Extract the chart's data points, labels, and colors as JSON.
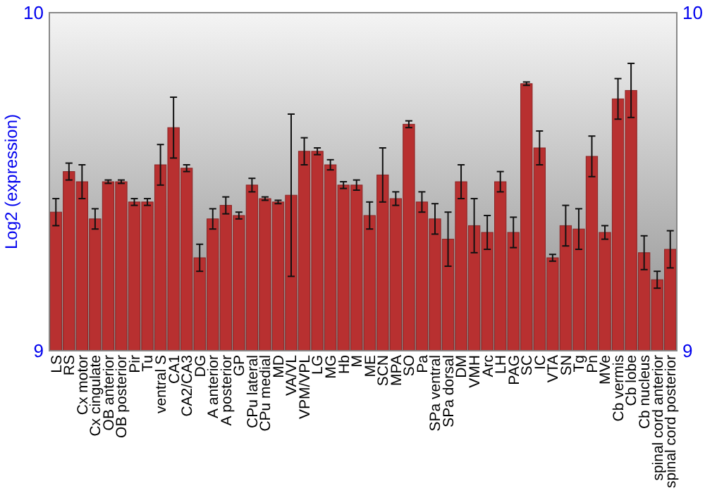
{
  "chart_data": {
    "type": "bar",
    "ylabel": "Log2 (expression)",
    "categories": [
      "LS",
      "RS",
      "Cx motor",
      "Cx cingulate",
      "OB anterior",
      "OB posterior",
      "Pir",
      "Tu",
      "ventral S",
      "CA1",
      "CA2/CA3",
      "DG",
      "A anterior",
      "A posterior",
      "GP",
      "CPu lateral",
      "CPu medial",
      "MD",
      "VA/VL",
      "VPM/VPL",
      "LG",
      "MG",
      "Hb",
      "M",
      "ME",
      "SCN",
      "MPA",
      "SO",
      "Pa",
      "SPa ventral",
      "SPa dorsal",
      "DM",
      "VMH",
      "Arc",
      "LH",
      "PAG",
      "SC",
      "IC",
      "VTA",
      "SN",
      "Tg",
      "Pn",
      "MVe",
      "Cb vermis",
      "Cb lobe",
      "Cb nucleus",
      "spinal cord anterior",
      "spinal cord posterior"
    ],
    "values": [
      9.41,
      9.53,
      9.5,
      9.39,
      9.5,
      9.5,
      9.44,
      9.44,
      9.55,
      9.66,
      9.54,
      9.275,
      9.39,
      9.43,
      9.4,
      9.49,
      9.45,
      9.44,
      9.46,
      9.59,
      9.59,
      9.55,
      9.49,
      9.49,
      9.4,
      9.52,
      9.45,
      9.67,
      9.44,
      9.39,
      9.33,
      9.5,
      9.37,
      9.35,
      9.5,
      9.35,
      9.79,
      9.6,
      9.275,
      9.37,
      9.36,
      9.575,
      9.35,
      9.745,
      9.77,
      9.29,
      9.21,
      9.3
    ],
    "errors": [
      0.04,
      0.025,
      0.05,
      0.03,
      0.005,
      0.005,
      0.01,
      0.01,
      0.06,
      0.09,
      0.01,
      0.04,
      0.03,
      0.025,
      0.01,
      0.02,
      0.005,
      0.005,
      0.24,
      0.04,
      0.01,
      0.015,
      0.01,
      0.015,
      0.04,
      0.08,
      0.02,
      0.01,
      0.03,
      0.045,
      0.08,
      0.05,
      0.08,
      0.05,
      0.03,
      0.045,
      0.005,
      0.05,
      0.01,
      0.06,
      0.06,
      0.06,
      0.02,
      0.06,
      0.08,
      0.05,
      0.025,
      0.055
    ],
    "color": "#b83030",
    "ylim": [
      9,
      10
    ],
    "yticks": [
      9,
      10
    ],
    "y2lim": [
      9,
      10
    ],
    "y2ticks": [
      9,
      10
    ]
  }
}
